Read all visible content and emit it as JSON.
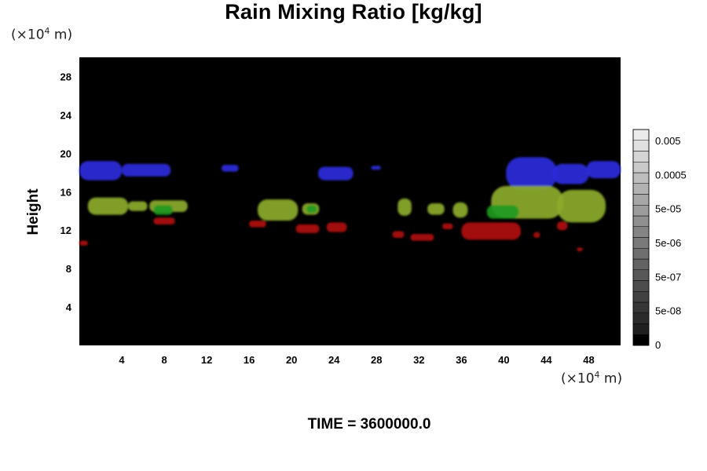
{
  "chart_data": {
    "type": "heatmap",
    "title": "Rain Mixing Ratio [kg/kg]",
    "ylabel": "Height",
    "xlabel": "",
    "x_unit_prefix": "(×10",
    "x_unit_exp": "4",
    "x_unit_suffix": " m)",
    "y_unit_prefix": "(×10",
    "y_unit_exp": "4",
    "y_unit_suffix": " m)",
    "xlim": [
      0,
      51
    ],
    "ylim": [
      0,
      30
    ],
    "x_ticks": [
      "4",
      "8",
      "12",
      "16",
      "20",
      "24",
      "28",
      "32",
      "36",
      "40",
      "44",
      "48"
    ],
    "y_ticks": [
      "4",
      "8",
      "12",
      "16",
      "20",
      "24",
      "28"
    ],
    "grid": false,
    "colorbar": {
      "placement": "right",
      "tick_labels": [
        "0.005",
        "0.0005",
        "5e-05",
        "5e-06",
        "5e-07",
        "5e-08",
        "0"
      ]
    },
    "background_color": "#000000",
    "layers": [
      {
        "color": "#2a2adc",
        "regions": [
          {
            "x0": 0.0,
            "x1": 4.0,
            "y0": 17.2,
            "y1": 19.2
          },
          {
            "x0": 4.0,
            "x1": 8.6,
            "y0": 17.6,
            "y1": 18.9
          },
          {
            "x0": 13.4,
            "x1": 15.0,
            "y0": 18.1,
            "y1": 18.8
          },
          {
            "x0": 22.5,
            "x1": 25.8,
            "y0": 17.2,
            "y1": 18.6
          },
          {
            "x0": 27.5,
            "x1": 28.4,
            "y0": 18.3,
            "y1": 18.7
          },
          {
            "x0": 40.2,
            "x1": 45.0,
            "y0": 16.2,
            "y1": 19.6
          },
          {
            "x0": 44.6,
            "x1": 48.0,
            "y0": 16.8,
            "y1": 18.9
          },
          {
            "x0": 47.8,
            "x1": 51.0,
            "y0": 17.4,
            "y1": 19.2
          }
        ]
      },
      {
        "color": "#8cab2c",
        "regions": [
          {
            "x0": 0.8,
            "x1": 4.6,
            "y0": 13.6,
            "y1": 15.4
          },
          {
            "x0": 4.6,
            "x1": 6.4,
            "y0": 14.0,
            "y1": 15.0
          },
          {
            "x0": 6.6,
            "x1": 10.2,
            "y0": 13.9,
            "y1": 15.1
          },
          {
            "x0": 16.8,
            "x1": 20.6,
            "y0": 13.0,
            "y1": 15.2
          },
          {
            "x0": 21.0,
            "x1": 22.6,
            "y0": 13.6,
            "y1": 14.8
          },
          {
            "x0": 30.0,
            "x1": 31.3,
            "y0": 13.5,
            "y1": 15.3
          },
          {
            "x0": 32.8,
            "x1": 34.4,
            "y0": 13.6,
            "y1": 14.8
          },
          {
            "x0": 35.2,
            "x1": 36.6,
            "y0": 13.3,
            "y1": 14.9
          },
          {
            "x0": 38.8,
            "x1": 45.6,
            "y0": 13.2,
            "y1": 16.6
          },
          {
            "x0": 45.0,
            "x1": 49.6,
            "y0": 12.8,
            "y1": 16.2
          }
        ]
      },
      {
        "color": "#1e9a1e",
        "regions": [
          {
            "x0": 7.0,
            "x1": 8.8,
            "y0": 13.6,
            "y1": 14.6
          },
          {
            "x0": 21.4,
            "x1": 22.4,
            "y0": 13.8,
            "y1": 14.6
          },
          {
            "x0": 38.4,
            "x1": 41.4,
            "y0": 13.2,
            "y1": 14.6
          }
        ]
      },
      {
        "color": "#b01212",
        "regions": [
          {
            "x0": 0.0,
            "x1": 0.8,
            "y0": 10.4,
            "y1": 10.9
          },
          {
            "x0": 7.0,
            "x1": 9.0,
            "y0": 12.6,
            "y1": 13.3
          },
          {
            "x0": 16.0,
            "x1": 17.6,
            "y0": 12.3,
            "y1": 13.0
          },
          {
            "x0": 20.4,
            "x1": 22.6,
            "y0": 11.7,
            "y1": 12.6
          },
          {
            "x0": 23.3,
            "x1": 25.2,
            "y0": 11.8,
            "y1": 12.8
          },
          {
            "x0": 29.5,
            "x1": 30.6,
            "y0": 11.2,
            "y1": 11.9
          },
          {
            "x0": 31.2,
            "x1": 33.4,
            "y0": 10.9,
            "y1": 11.6
          },
          {
            "x0": 34.2,
            "x1": 35.2,
            "y0": 12.1,
            "y1": 12.7
          },
          {
            "x0": 36.0,
            "x1": 41.6,
            "y0": 11.0,
            "y1": 12.8
          },
          {
            "x0": 42.8,
            "x1": 43.4,
            "y0": 11.2,
            "y1": 11.8
          },
          {
            "x0": 45.0,
            "x1": 46.0,
            "y0": 12.0,
            "y1": 12.9
          },
          {
            "x0": 46.9,
            "x1": 47.4,
            "y0": 9.8,
            "y1": 10.2
          }
        ]
      }
    ]
  },
  "time": {
    "label": "TIME = 3600000.0"
  }
}
